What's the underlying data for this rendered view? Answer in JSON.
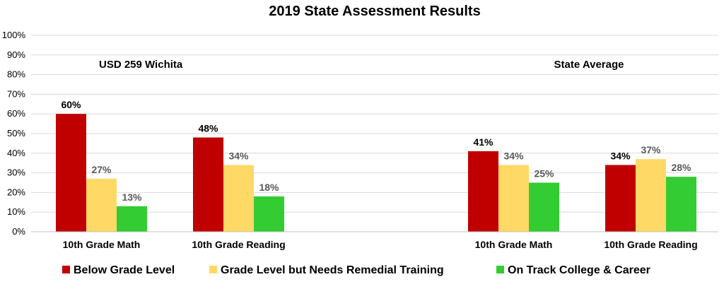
{
  "chart_data": {
    "type": "bar",
    "title": "2019 State Assessment Results",
    "y_ticks": [
      "0%",
      "10%",
      "20%",
      "30%",
      "40%",
      "50%",
      "60%",
      "70%",
      "80%",
      "90%",
      "100%"
    ],
    "ylim": [
      0,
      100
    ],
    "grid": true,
    "legend_position": "bottom",
    "groups": [
      {
        "label": "USD 259 Wichita",
        "categories": [
          {
            "label": "10th Grade Math",
            "values": [
              60,
              27,
              13
            ],
            "value_labels": [
              "60%",
              "27%",
              "13%"
            ]
          },
          {
            "label": "10th Grade Reading",
            "values": [
              48,
              34,
              18
            ],
            "value_labels": [
              "48%",
              "34%",
              "18%"
            ]
          }
        ]
      },
      {
        "label": "State Average",
        "categories": [
          {
            "label": "10th Grade Math",
            "values": [
              41,
              34,
              25
            ],
            "value_labels": [
              "41%",
              "34%",
              "25%"
            ]
          },
          {
            "label": "10th Grade Reading",
            "values": [
              34,
              37,
              28
            ],
            "value_labels": [
              "34%",
              "37%",
              "28%"
            ]
          }
        ]
      }
    ],
    "series": [
      {
        "name": "Below Grade Level",
        "color": "#c00000",
        "label_color": "#000000"
      },
      {
        "name": "Grade Level but Needs Remedial Training",
        "color": "#ffd966",
        "label_color": "#595959"
      },
      {
        "name": "On Track College & Career",
        "color": "#33cc33",
        "label_color": "#595959"
      }
    ]
  }
}
